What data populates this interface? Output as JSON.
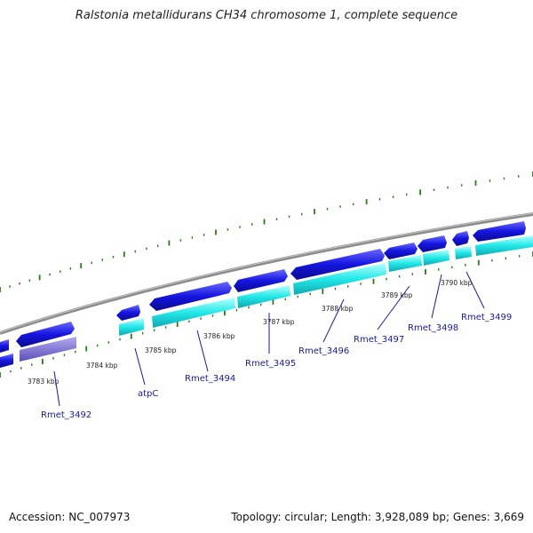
{
  "title": "Ralstonia metallidurans CH34 chromosome 1, complete sequence",
  "accession": "Accession: NC_007973",
  "summary": "Topology: circular; Length: 3,928,089 bp; Genes: 3,669",
  "scale_labels": [
    "3783 kbp",
    "3784 kbp",
    "3785 kbp",
    "3786 kbp",
    "3787 kbp",
    "3788 kbp",
    "3789 kbp",
    "3790 kbp"
  ],
  "gene_labels": [
    "Rmet_3492",
    "atpC",
    "Rmet_3494",
    "Rmet_3495",
    "Rmet_3496",
    "Rmet_3497",
    "Rmet_3498",
    "Rmet_3499"
  ],
  "colors": {
    "cds": "#1515e0",
    "gene": "#22e8e8",
    "rna": "#7b6fd6",
    "backbone": "#8c8c8c",
    "gc_tick": "#2a7a1a",
    "label": "#1a1a9a"
  }
}
